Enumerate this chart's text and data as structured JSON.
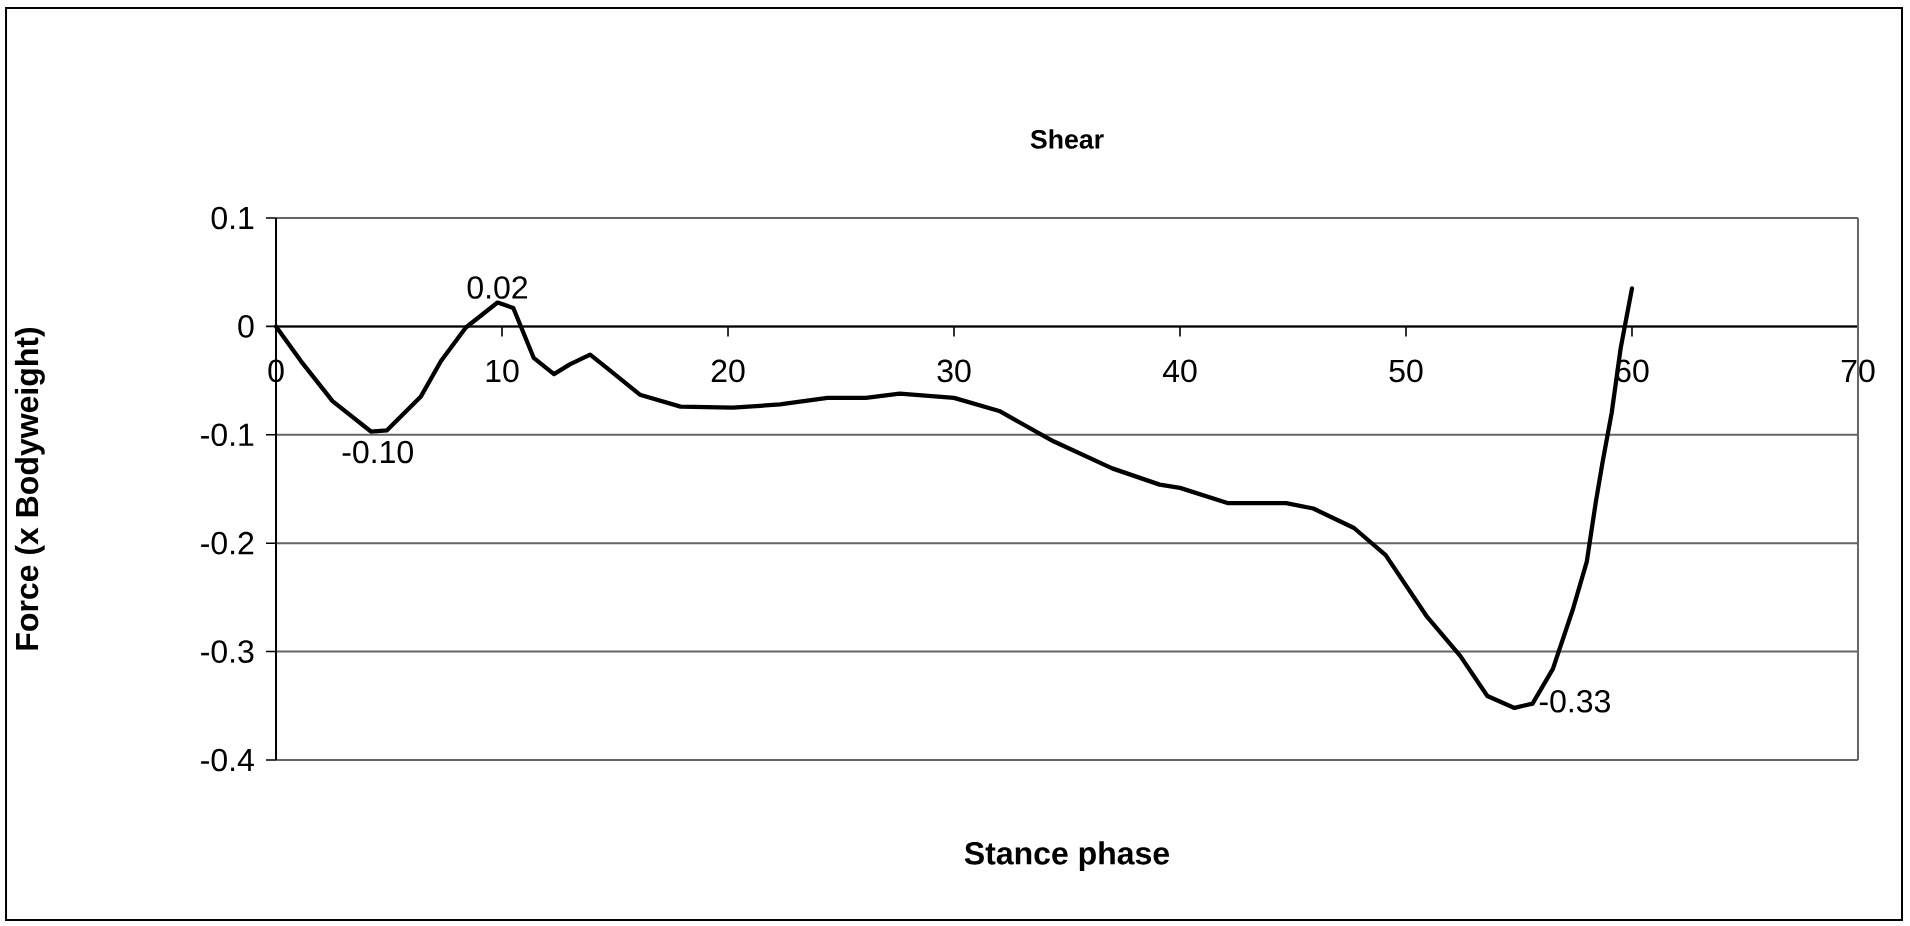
{
  "chart_data": {
    "type": "line",
    "title": "Shear",
    "xlabel": "Stance phase",
    "ylabel": "Force (x Bodyweight)",
    "xlim": [
      0,
      70
    ],
    "xticks": [
      0,
      10,
      20,
      30,
      40,
      50,
      60,
      70
    ],
    "ylim": [
      -0.4,
      0.1
    ],
    "yticks": [
      -0.4,
      -0.3,
      -0.2,
      -0.1,
      0,
      0.1
    ],
    "grid": "y",
    "marker": "none",
    "line_style": "solid",
    "x": [
      0,
      1.1,
      2.5,
      4.2,
      4.9,
      6.4,
      7.3,
      8.4,
      9.8,
      10.5,
      11.4,
      12.3,
      13.0,
      13.9,
      14.8,
      16.1,
      17.9,
      20.2,
      22.3,
      24.4,
      26.1,
      27.6,
      30.0,
      32.0,
      34.4,
      37.0,
      39.1,
      40.0,
      42.1,
      44.7,
      45.9,
      47.7,
      49.1,
      50.9,
      52.4,
      53.6,
      54.8,
      55.6,
      56.5,
      57.4,
      58.0,
      58.4,
      58.7,
      59.1,
      59.5,
      60.0
    ],
    "series": [
      {
        "color": "#000000",
        "values": [
          0,
          -0.032,
          -0.069,
          -0.097,
          -0.096,
          -0.065,
          -0.032,
          -0.001,
          0.022,
          0.017,
          -0.029,
          -0.044,
          -0.035,
          -0.026,
          -0.041,
          -0.063,
          -0.074,
          -0.075,
          -0.072,
          -0.066,
          -0.066,
          -0.062,
          -0.066,
          -0.078,
          -0.106,
          -0.131,
          -0.146,
          -0.149,
          -0.163,
          -0.163,
          -0.168,
          -0.186,
          -0.211,
          -0.267,
          -0.304,
          -0.341,
          -0.352,
          -0.348,
          -0.316,
          -0.26,
          -0.217,
          -0.162,
          -0.125,
          -0.08,
          -0.02,
          0.035
        ]
      }
    ],
    "annotations": [
      {
        "text": "0.02",
        "x": 9.8,
        "y": 0.02
      },
      {
        "text": "-0.10",
        "x": 4.5,
        "y": -0.1
      },
      {
        "text": "-0.33",
        "x": 55.6,
        "y": -0.33
      }
    ]
  }
}
